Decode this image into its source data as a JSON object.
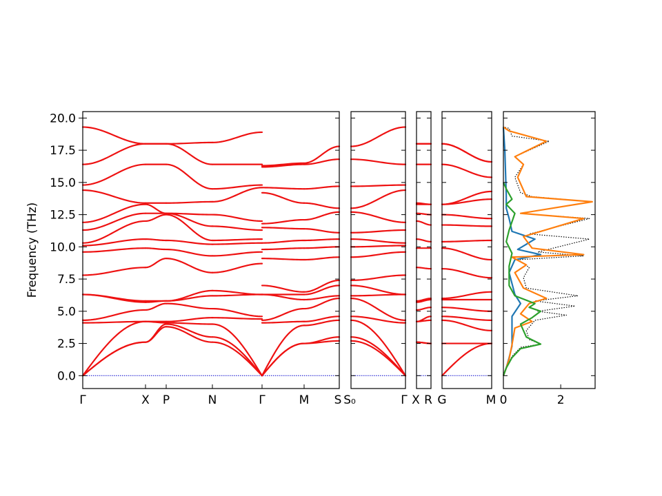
{
  "chart_data": {
    "type": "line",
    "ylabel": "Frequency (THz)",
    "ylim": [
      -1.0,
      20.5
    ],
    "yticks": [
      "0.0",
      "2.5",
      "5.0",
      "7.5",
      "10.0",
      "12.5",
      "15.0",
      "17.5",
      "20.0"
    ],
    "band_color": "#ee1111",
    "zero_line_color": "#0000cc",
    "band_panels": [
      {
        "labels": [
          "Γ",
          "X",
          "P",
          "N",
          "Γ",
          "M",
          "S"
        ],
        "segments": [
          {
            "from": "Γ",
            "to": "X",
            "at_start": [
              0.0,
              0.0,
              0.0,
              4.1,
              4.3,
              6.3,
              6.3,
              7.8,
              9.6,
              10.1,
              10.3,
              11.3,
              11.9,
              14.4,
              14.8,
              16.4,
              19.3
            ],
            "at_end": [
              2.6,
              2.6,
              4.2,
              4.2,
              5.1,
              5.7,
              5.8,
              8.4,
              9.9,
              10.6,
              12.0,
              12.6,
              13.3,
              13.4,
              16.4,
              18.0,
              18.0
            ]
          },
          {
            "from": "X",
            "to": "P",
            "at_start": [
              2.6,
              2.6,
              4.2,
              4.2,
              5.1,
              5.7,
              5.8,
              8.4,
              9.9,
              10.6,
              12.0,
              12.6,
              13.3,
              13.4,
              16.4,
              18.0,
              18.0
            ],
            "at_end": [
              3.8,
              4.0,
              4.1,
              4.2,
              5.6,
              5.8,
              5.8,
              9.1,
              9.8,
              10.5,
              12.5,
              12.6,
              12.6,
              13.4,
              16.4,
              18.0,
              18.0
            ]
          },
          {
            "from": "P",
            "to": "N",
            "at_start": [
              3.8,
              4.0,
              4.1,
              4.2,
              5.6,
              5.8,
              5.8,
              9.1,
              9.8,
              10.5,
              12.5,
              12.6,
              12.6,
              13.4,
              16.4,
              18.0,
              18.0
            ],
            "at_end": [
              2.6,
              3.0,
              4.0,
              4.5,
              5.2,
              6.2,
              6.6,
              8.0,
              9.3,
              10.2,
              10.5,
              11.6,
              12.5,
              13.5,
              14.5,
              16.4,
              18.1
            ]
          },
          {
            "from": "N",
            "to": "Γ",
            "at_start": [
              2.6,
              3.0,
              4.0,
              4.5,
              5.2,
              6.2,
              6.6,
              8.0,
              9.3,
              10.2,
              10.5,
              11.6,
              12.5,
              13.5,
              14.5,
              16.4,
              18.1
            ],
            "at_end": [
              0.0,
              0.0,
              0.0,
              4.4,
              4.6,
              6.3,
              6.3,
              8.7,
              9.6,
              10.3,
              10.6,
              11.3,
              12.0,
              14.6,
              14.8,
              16.4,
              18.9
            ]
          },
          {
            "from": "Γ",
            "to": "M",
            "at_start": [
              0.0,
              0.0,
              0.0,
              4.1,
              4.3,
              6.3,
              6.3,
              7.0,
              9.1,
              9.8,
              10.3,
              11.5,
              11.8,
              14.2,
              14.6,
              16.2,
              16.3
            ],
            "at_end": [
              2.5,
              2.5,
              3.9,
              4.2,
              5.2,
              5.9,
              6.3,
              6.5,
              9.0,
              9.9,
              10.5,
              11.4,
              12.1,
              13.4,
              14.5,
              16.4,
              16.5
            ]
          },
          {
            "from": "M",
            "to": "S",
            "at_start": [
              2.5,
              2.5,
              3.9,
              4.2,
              5.2,
              5.9,
              6.3,
              6.5,
              9.0,
              9.9,
              10.5,
              11.4,
              12.1,
              13.4,
              14.5,
              16.4,
              16.5
            ],
            "at_end": [
              2.7,
              3.0,
              4.3,
              4.6,
              6.0,
              6.2,
              7.0,
              7.4,
              9.2,
              10.0,
              10.6,
              11.1,
              12.7,
              13.0,
              14.7,
              16.8,
              17.8
            ]
          }
        ]
      },
      {
        "labels": [
          "S₀",
          "Γ"
        ],
        "segments": [
          {
            "from": "S₀",
            "to": "Γ",
            "at_start": [
              2.7,
              3.0,
              4.3,
              4.6,
              6.0,
              6.2,
              7.0,
              7.4,
              9.2,
              10.0,
              10.6,
              11.1,
              12.7,
              13.0,
              14.7,
              16.8,
              17.8
            ],
            "at_end": [
              0.0,
              0.0,
              0.0,
              4.1,
              4.3,
              6.3,
              6.3,
              7.8,
              9.6,
              10.1,
              10.3,
              11.3,
              11.9,
              14.4,
              14.8,
              16.4,
              19.3
            ]
          }
        ]
      },
      {
        "labels": [
          "X",
          "R"
        ],
        "segments": [
          {
            "from": "X",
            "to": "R",
            "at_start": [
              2.6,
              2.6,
              4.2,
              4.2,
              5.1,
              5.7,
              5.8,
              8.4,
              9.9,
              10.6,
              12.0,
              12.6,
              13.3,
              13.4,
              16.4,
              18.0,
              18.0
            ],
            "at_end": [
              2.5,
              2.5,
              4.3,
              4.6,
              5.3,
              5.9,
              6.0,
              8.3,
              9.9,
              10.4,
              11.7,
              12.5,
              13.3,
              13.3,
              16.4,
              18.0,
              18.0
            ]
          }
        ]
      },
      {
        "labels": [
          "G",
          "M"
        ],
        "segments": [
          {
            "from": "G",
            "to": "M",
            "at_start": [
              0.0,
              2.5,
              4.3,
              4.6,
              5.3,
              5.9,
              6.0,
              8.3,
              9.9,
              10.4,
              11.7,
              12.5,
              13.3,
              13.3,
              16.4,
              18.0,
              18.0
            ],
            "at_end": [
              2.5,
              2.5,
              3.5,
              4.3,
              5.0,
              5.9,
              6.5,
              7.6,
              9.0,
              10.5,
              11.6,
              12.2,
              13.7,
              14.3,
              15.4,
              16.6,
              16.6
            ]
          }
        ]
      }
    ],
    "dos_panel": {
      "xticks": [
        "0",
        "2"
      ],
      "xlim": [
        0,
        3.2
      ],
      "series": [
        {
          "color": "#000000",
          "style": "dotted",
          "points": [
            [
              0,
              0
            ],
            [
              0.1,
              0.6
            ],
            [
              0.3,
              1.5
            ],
            [
              0.6,
              2.2
            ],
            [
              1.3,
              2.45
            ],
            [
              0.9,
              2.8
            ],
            [
              0.8,
              3.5
            ],
            [
              1.1,
              4.3
            ],
            [
              2.2,
              4.7
            ],
            [
              1.2,
              5.0
            ],
            [
              2.5,
              5.4
            ],
            [
              1.1,
              5.8
            ],
            [
              2.6,
              6.2
            ],
            [
              0.8,
              6.8
            ],
            [
              0.7,
              7.6
            ],
            [
              0.9,
              8.4
            ],
            [
              0.5,
              9.0
            ],
            [
              2.8,
              9.3
            ],
            [
              1.2,
              9.6
            ],
            [
              3.0,
              10.6
            ],
            [
              0.9,
              11.0
            ],
            [
              3.0,
              12.2
            ],
            [
              0.6,
              12.6
            ],
            [
              3.1,
              13.5
            ],
            [
              1.0,
              13.9
            ],
            [
              0.6,
              14.2
            ],
            [
              0.4,
              15.4
            ],
            [
              0.7,
              16.4
            ],
            [
              0.4,
              17.0
            ],
            [
              1.6,
              18.2
            ],
            [
              0.3,
              18.6
            ],
            [
              0.2,
              19.2
            ],
            [
              0,
              19.3
            ]
          ]
        },
        {
          "color": "#1f77b4",
          "style": "solid",
          "points": [
            [
              0,
              0
            ],
            [
              0.1,
              0.6
            ],
            [
              0.2,
              1.4
            ],
            [
              0.3,
              2.3
            ],
            [
              0.3,
              3.6
            ],
            [
              0.3,
              4.6
            ],
            [
              0.6,
              5.6
            ],
            [
              0.4,
              6.3
            ],
            [
              0.2,
              8.0
            ],
            [
              0.4,
              9.0
            ],
            [
              1.3,
              9.4
            ],
            [
              0.5,
              9.8
            ],
            [
              1.1,
              10.6
            ],
            [
              0.3,
              11.2
            ],
            [
              0.2,
              12.2
            ],
            [
              0.1,
              13.0
            ],
            [
              0.1,
              14.0
            ],
            [
              0.05,
              17.5
            ],
            [
              0,
              19.3
            ]
          ]
        },
        {
          "color": "#ff7f0e",
          "style": "solid",
          "points": [
            [
              0,
              0
            ],
            [
              0.1,
              0.6
            ],
            [
              0.2,
              1.3
            ],
            [
              0.3,
              2.4
            ],
            [
              0.4,
              3.7
            ],
            [
              1.0,
              4.2
            ],
            [
              0.6,
              4.8
            ],
            [
              0.9,
              5.6
            ],
            [
              1.5,
              6.0
            ],
            [
              0.7,
              6.8
            ],
            [
              0.4,
              8.0
            ],
            [
              0.8,
              8.6
            ],
            [
              0.3,
              9.2
            ],
            [
              2.8,
              9.4
            ],
            [
              1.0,
              9.9
            ],
            [
              0.7,
              10.8
            ],
            [
              1.3,
              11.2
            ],
            [
              2.8,
              12.2
            ],
            [
              0.6,
              12.6
            ],
            [
              3.1,
              13.5
            ],
            [
              0.8,
              13.9
            ],
            [
              0.5,
              15.4
            ],
            [
              0.7,
              16.4
            ],
            [
              0.4,
              17.0
            ],
            [
              1.5,
              18.2
            ],
            [
              0.2,
              19.0
            ],
            [
              0,
              19.3
            ]
          ]
        },
        {
          "color": "#2ca02c",
          "style": "solid",
          "points": [
            [
              0,
              0
            ],
            [
              0.1,
              0.6
            ],
            [
              0.3,
              1.4
            ],
            [
              0.6,
              2.1
            ],
            [
              1.3,
              2.45
            ],
            [
              0.8,
              3.0
            ],
            [
              0.6,
              4.0
            ],
            [
              1.0,
              4.5
            ],
            [
              1.3,
              5.0
            ],
            [
              0.9,
              5.3
            ],
            [
              1.1,
              5.6
            ],
            [
              0.4,
              6.2
            ],
            [
              0.2,
              7.0
            ],
            [
              0.2,
              8.5
            ],
            [
              0.3,
              9.5
            ],
            [
              0.1,
              10.4
            ],
            [
              0.2,
              11.3
            ],
            [
              0.4,
              12.6
            ],
            [
              0.1,
              13.3
            ],
            [
              0.3,
              13.7
            ],
            [
              0.1,
              14.5
            ],
            [
              0,
              15.0
            ]
          ]
        }
      ]
    }
  }
}
